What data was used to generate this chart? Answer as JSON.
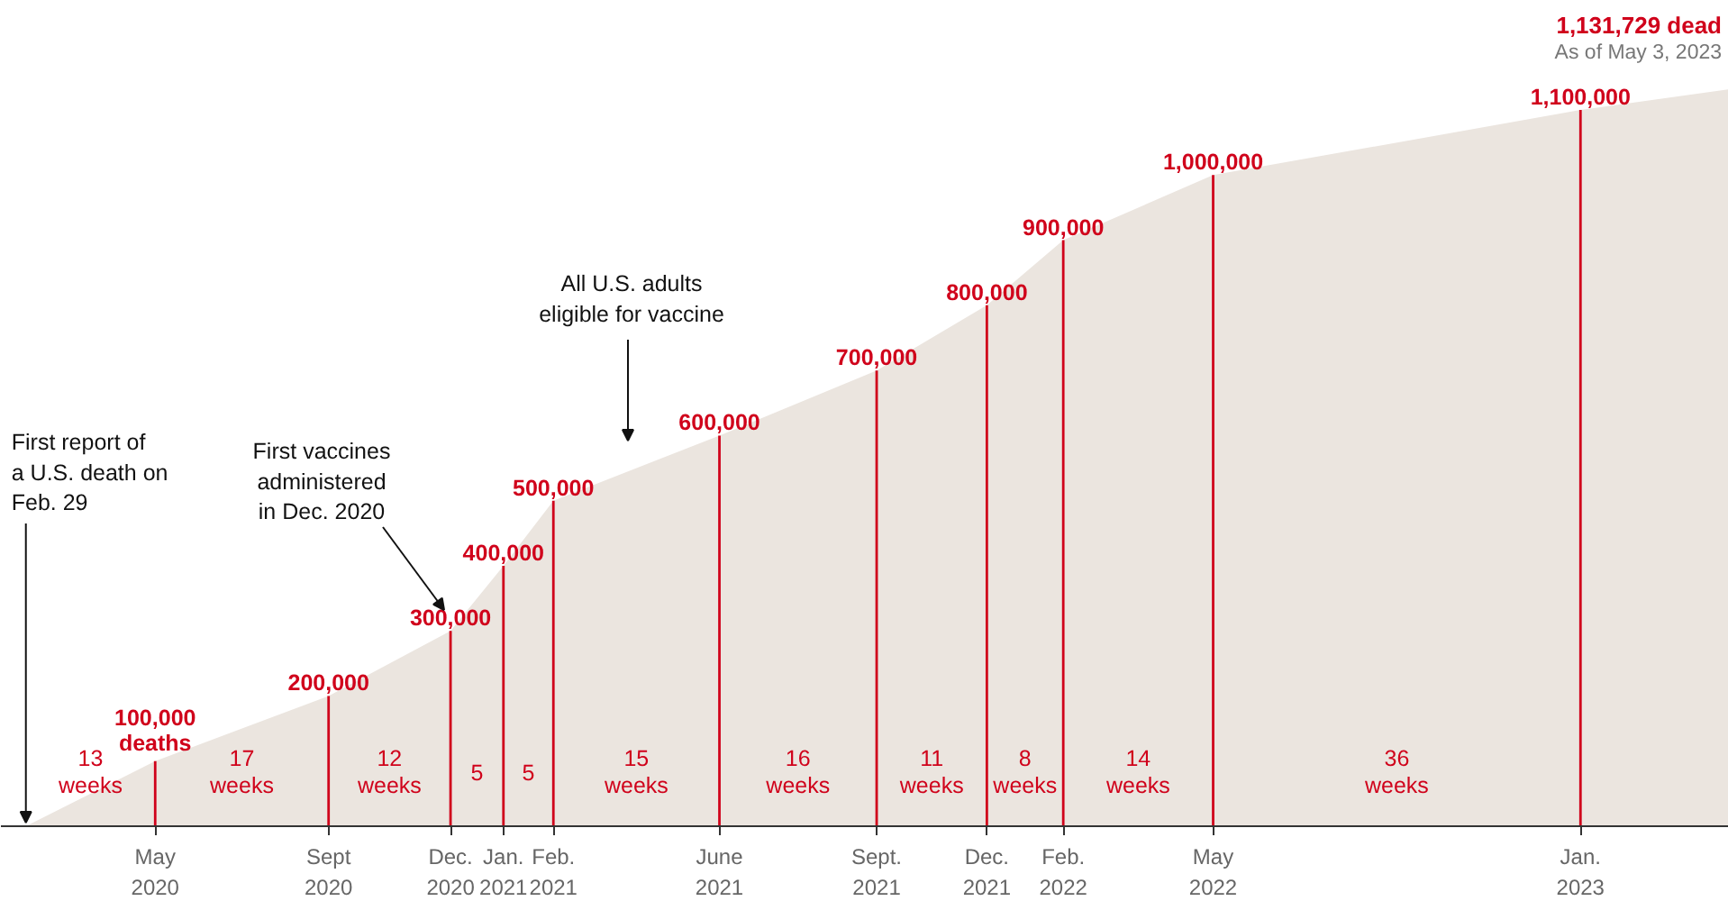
{
  "chart_data": {
    "type": "area",
    "subtitle": "As of May 3, 2023",
    "xlim": [
      "2020-02-12",
      "2023-05-03"
    ],
    "tick_labels": "x",
    "xticks": [
      {
        "value": "2020-05-27",
        "label": "May\n2020"
      },
      {
        "value": "2020-09-22",
        "label": "Sept\n2020"
      },
      {
        "value": "2020-12-14",
        "label": "Dec.\n2020"
      },
      {
        "value": "2021-01-19",
        "label": "Jan.\n2021"
      },
      {
        "value": "2021-02-22",
        "label": "Feb.\n2021"
      },
      {
        "value": "2021-06-15",
        "label": "June\n2021"
      },
      {
        "value": "2021-09-30",
        "label": "Sept.\n2021"
      },
      {
        "value": "2021-12-14",
        "label": "Dec.\n2021"
      },
      {
        "value": "2022-02-04",
        "label": "Feb.\n2022"
      },
      {
        "value": "2022-05-17",
        "label": "May\n2022"
      },
      {
        "value": "2023-01-22",
        "label": "Jan.\n2023"
      }
    ],
    "series": [
      {
        "color": "#ebe5df",
        "x": [
          "2020-02-29",
          "2020-05-27",
          "2020-09-22",
          "2020-12-14",
          "2021-01-19",
          "2021-02-22",
          "2021-06-15",
          "2021-09-30",
          "2021-12-14",
          "2022-02-04",
          "2022-05-17",
          "2023-01-22",
          "2023-05-03"
        ],
        "values": [
          0,
          100000,
          200000,
          300000,
          400000,
          500000,
          600000,
          700000,
          800000,
          900000,
          1000000,
          1100000,
          1131729
        ]
      },
      {
        "type": "bar",
        "color": "#d0021b",
        "x": [
          "2020-05-27",
          "2020-09-22",
          "2020-12-14",
          "2021-01-19",
          "2021-02-22",
          "2021-06-15",
          "2021-09-30",
          "2021-12-14",
          "2022-02-04",
          "2022-05-17",
          "2023-01-22"
        ],
        "values": [
          100000,
          200000,
          300000,
          400000,
          500000,
          600000,
          700000,
          800000,
          900000,
          1000000,
          1100000
        ],
        "value_labels": [
          "100,000\ndeaths",
          "200,000",
          "300,000",
          "400,000",
          "500,000",
          "600,000",
          "700,000",
          "800,000",
          "900,000",
          "1,000,000",
          "1,100,000"
        ]
      }
    ],
    "annotations": [
      {
        "text": "First report of\na U.S. death on\nFeb. 29",
        "x": "2020-02-29",
        "y": 0
      },
      "First vaccines\nadministered\nin Dec. 2020",
      "All U.S. adults\neligible for vaccine",
      {
        "text": "1,131,729 dead",
        "x": "2023-05-03",
        "y": 1131729
      },
      "13\nweeks",
      "17\nweeks",
      "12\nweeks",
      "5",
      "5",
      "15\nweeks",
      "16\nweeks",
      "11\nweeks",
      "8\nweeks",
      "14\nweeks",
      "36\nweeks"
    ]
  }
}
